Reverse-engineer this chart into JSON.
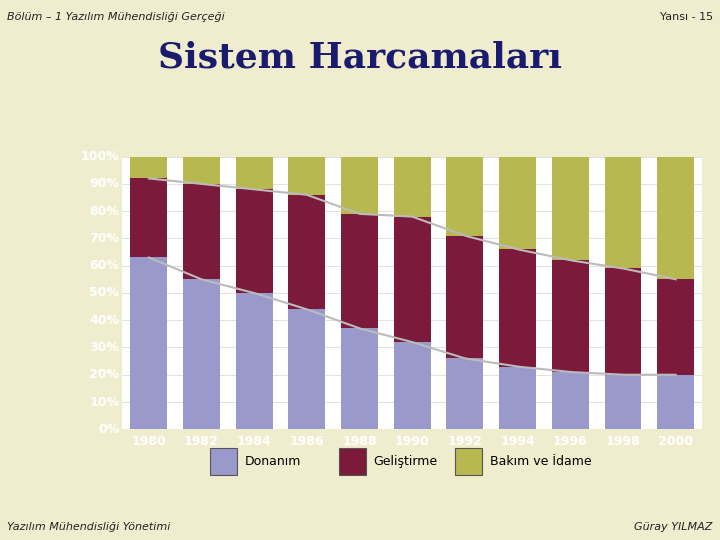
{
  "years": [
    1980,
    1982,
    1984,
    1986,
    1988,
    1990,
    1992,
    1994,
    1996,
    1998,
    2000
  ],
  "donanim": [
    63,
    55,
    50,
    44,
    37,
    32,
    26,
    23,
    21,
    20,
    20
  ],
  "gelistirme": [
    29,
    35,
    38,
    42,
    42,
    46,
    45,
    43,
    41,
    39,
    35
  ],
  "bakim": [
    8,
    10,
    12,
    14,
    21,
    22,
    29,
    34,
    38,
    41,
    45
  ],
  "color_donanim": "#9999cc",
  "color_gelistirme": "#7b1a3b",
  "color_bakim": "#b8b850",
  "title": "Sistem Harcamaları",
  "header_left": "Bölüm – 1 Yazılım Mühendisliği Gerçeği",
  "header_right": "Yansı - 15",
  "footer_left": "Yazılım Mühendisliği Yönetimi",
  "footer_right": "Güray YILMAZ",
  "legend_labels": [
    "Donanım",
    "Geliştirme",
    "Bakım ve İdame"
  ],
  "bg_outer": "#f0edce",
  "bg_chart": "#1a1a8c",
  "bg_plot": "#ffffff",
  "line_color": "#bbbbbb",
  "line_width": 1.5,
  "title_fontsize": 26,
  "header_fontsize": 8,
  "footer_fontsize": 8,
  "tick_label_color": "#ffffff",
  "tick_fontsize": 9,
  "legend_fontsize": 9,
  "divider_color": "#800000",
  "gray_bar_color": "#999999"
}
